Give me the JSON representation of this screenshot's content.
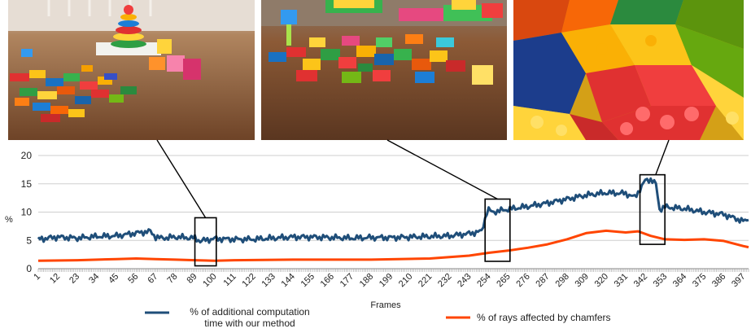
{
  "panels": [
    {
      "name": "scene-wide-view"
    },
    {
      "name": "scene-medium-view"
    },
    {
      "name": "scene-closeup-view"
    }
  ],
  "chart_data": {
    "type": "line",
    "title": "",
    "xlabel": "Frames",
    "ylabel": "%",
    "xlim": [
      1,
      400
    ],
    "ylim": [
      0,
      20
    ],
    "yticks": [
      0,
      5,
      10,
      15,
      20
    ],
    "xtick_labels": [
      "1",
      "12",
      "23",
      "34",
      "45",
      "56",
      "67",
      "78",
      "89",
      "100",
      "111",
      "122",
      "133",
      "144",
      "155",
      "166",
      "177",
      "188",
      "199",
      "210",
      "221",
      "232",
      "243",
      "254",
      "265",
      "276",
      "287",
      "298",
      "309",
      "320",
      "331",
      "342",
      "353",
      "364",
      "375",
      "386",
      "397"
    ],
    "grid": true,
    "legend_position": "bottom",
    "series": [
      {
        "name": "% of additional computation time with our method",
        "legend_lines": [
          "% of additional computation",
          "time with our method"
        ],
        "color": "#1f4e79",
        "x": [
          1,
          12,
          23,
          34,
          45,
          56,
          64,
          67,
          70,
          78,
          89,
          92,
          100,
          111,
          122,
          133,
          144,
          155,
          166,
          177,
          188,
          199,
          210,
          221,
          232,
          243,
          250,
          253,
          254,
          256,
          265,
          276,
          287,
          298,
          309,
          320,
          331,
          336,
          340,
          342,
          345,
          348,
          350,
          353,
          364,
          375,
          386,
          397,
          400
        ],
        "y": [
          5.2,
          5.6,
          5.4,
          5.7,
          5.8,
          6.3,
          6.6,
          5.6,
          5.4,
          5.6,
          5.4,
          4.9,
          5.3,
          5.2,
          5.2,
          5.4,
          5.6,
          5.6,
          5.5,
          5.4,
          5.5,
          5.5,
          5.6,
          5.7,
          5.8,
          6.2,
          6.6,
          10.0,
          10.4,
          10.0,
          10.5,
          11.0,
          11.6,
          12.3,
          13.0,
          13.4,
          13.3,
          12.6,
          14.5,
          15.6,
          15.8,
          14.9,
          10.5,
          10.9,
          10.6,
          10.0,
          9.6,
          8.4,
          8.6
        ]
      },
      {
        "name": "% of rays affected by chamfers",
        "legend_lines": [
          "% of rays affected by chamfers"
        ],
        "color": "#ff4500",
        "x": [
          1,
          23,
          45,
          56,
          67,
          78,
          89,
          100,
          111,
          144,
          188,
          221,
          243,
          254,
          265,
          276,
          287,
          298,
          309,
          320,
          331,
          338,
          345,
          353,
          364,
          375,
          386,
          397,
          400
        ],
        "y": [
          1.4,
          1.5,
          1.7,
          1.8,
          1.7,
          1.6,
          1.5,
          1.4,
          1.5,
          1.6,
          1.6,
          1.8,
          2.3,
          2.8,
          3.2,
          3.7,
          4.3,
          5.2,
          6.3,
          6.7,
          6.4,
          6.6,
          5.8,
          5.2,
          5.1,
          5.2,
          4.9,
          4.0,
          3.8
        ]
      }
    ],
    "annotations": [
      {
        "x_range": [
          89,
          101
        ],
        "y_range": [
          0.5,
          9.0
        ]
      },
      {
        "x_range": [
          252,
          266
        ],
        "y_range": [
          1.3,
          12.3
        ]
      },
      {
        "x_range": [
          339,
          353
        ],
        "y_range": [
          4.3,
          16.6
        ]
      }
    ]
  }
}
